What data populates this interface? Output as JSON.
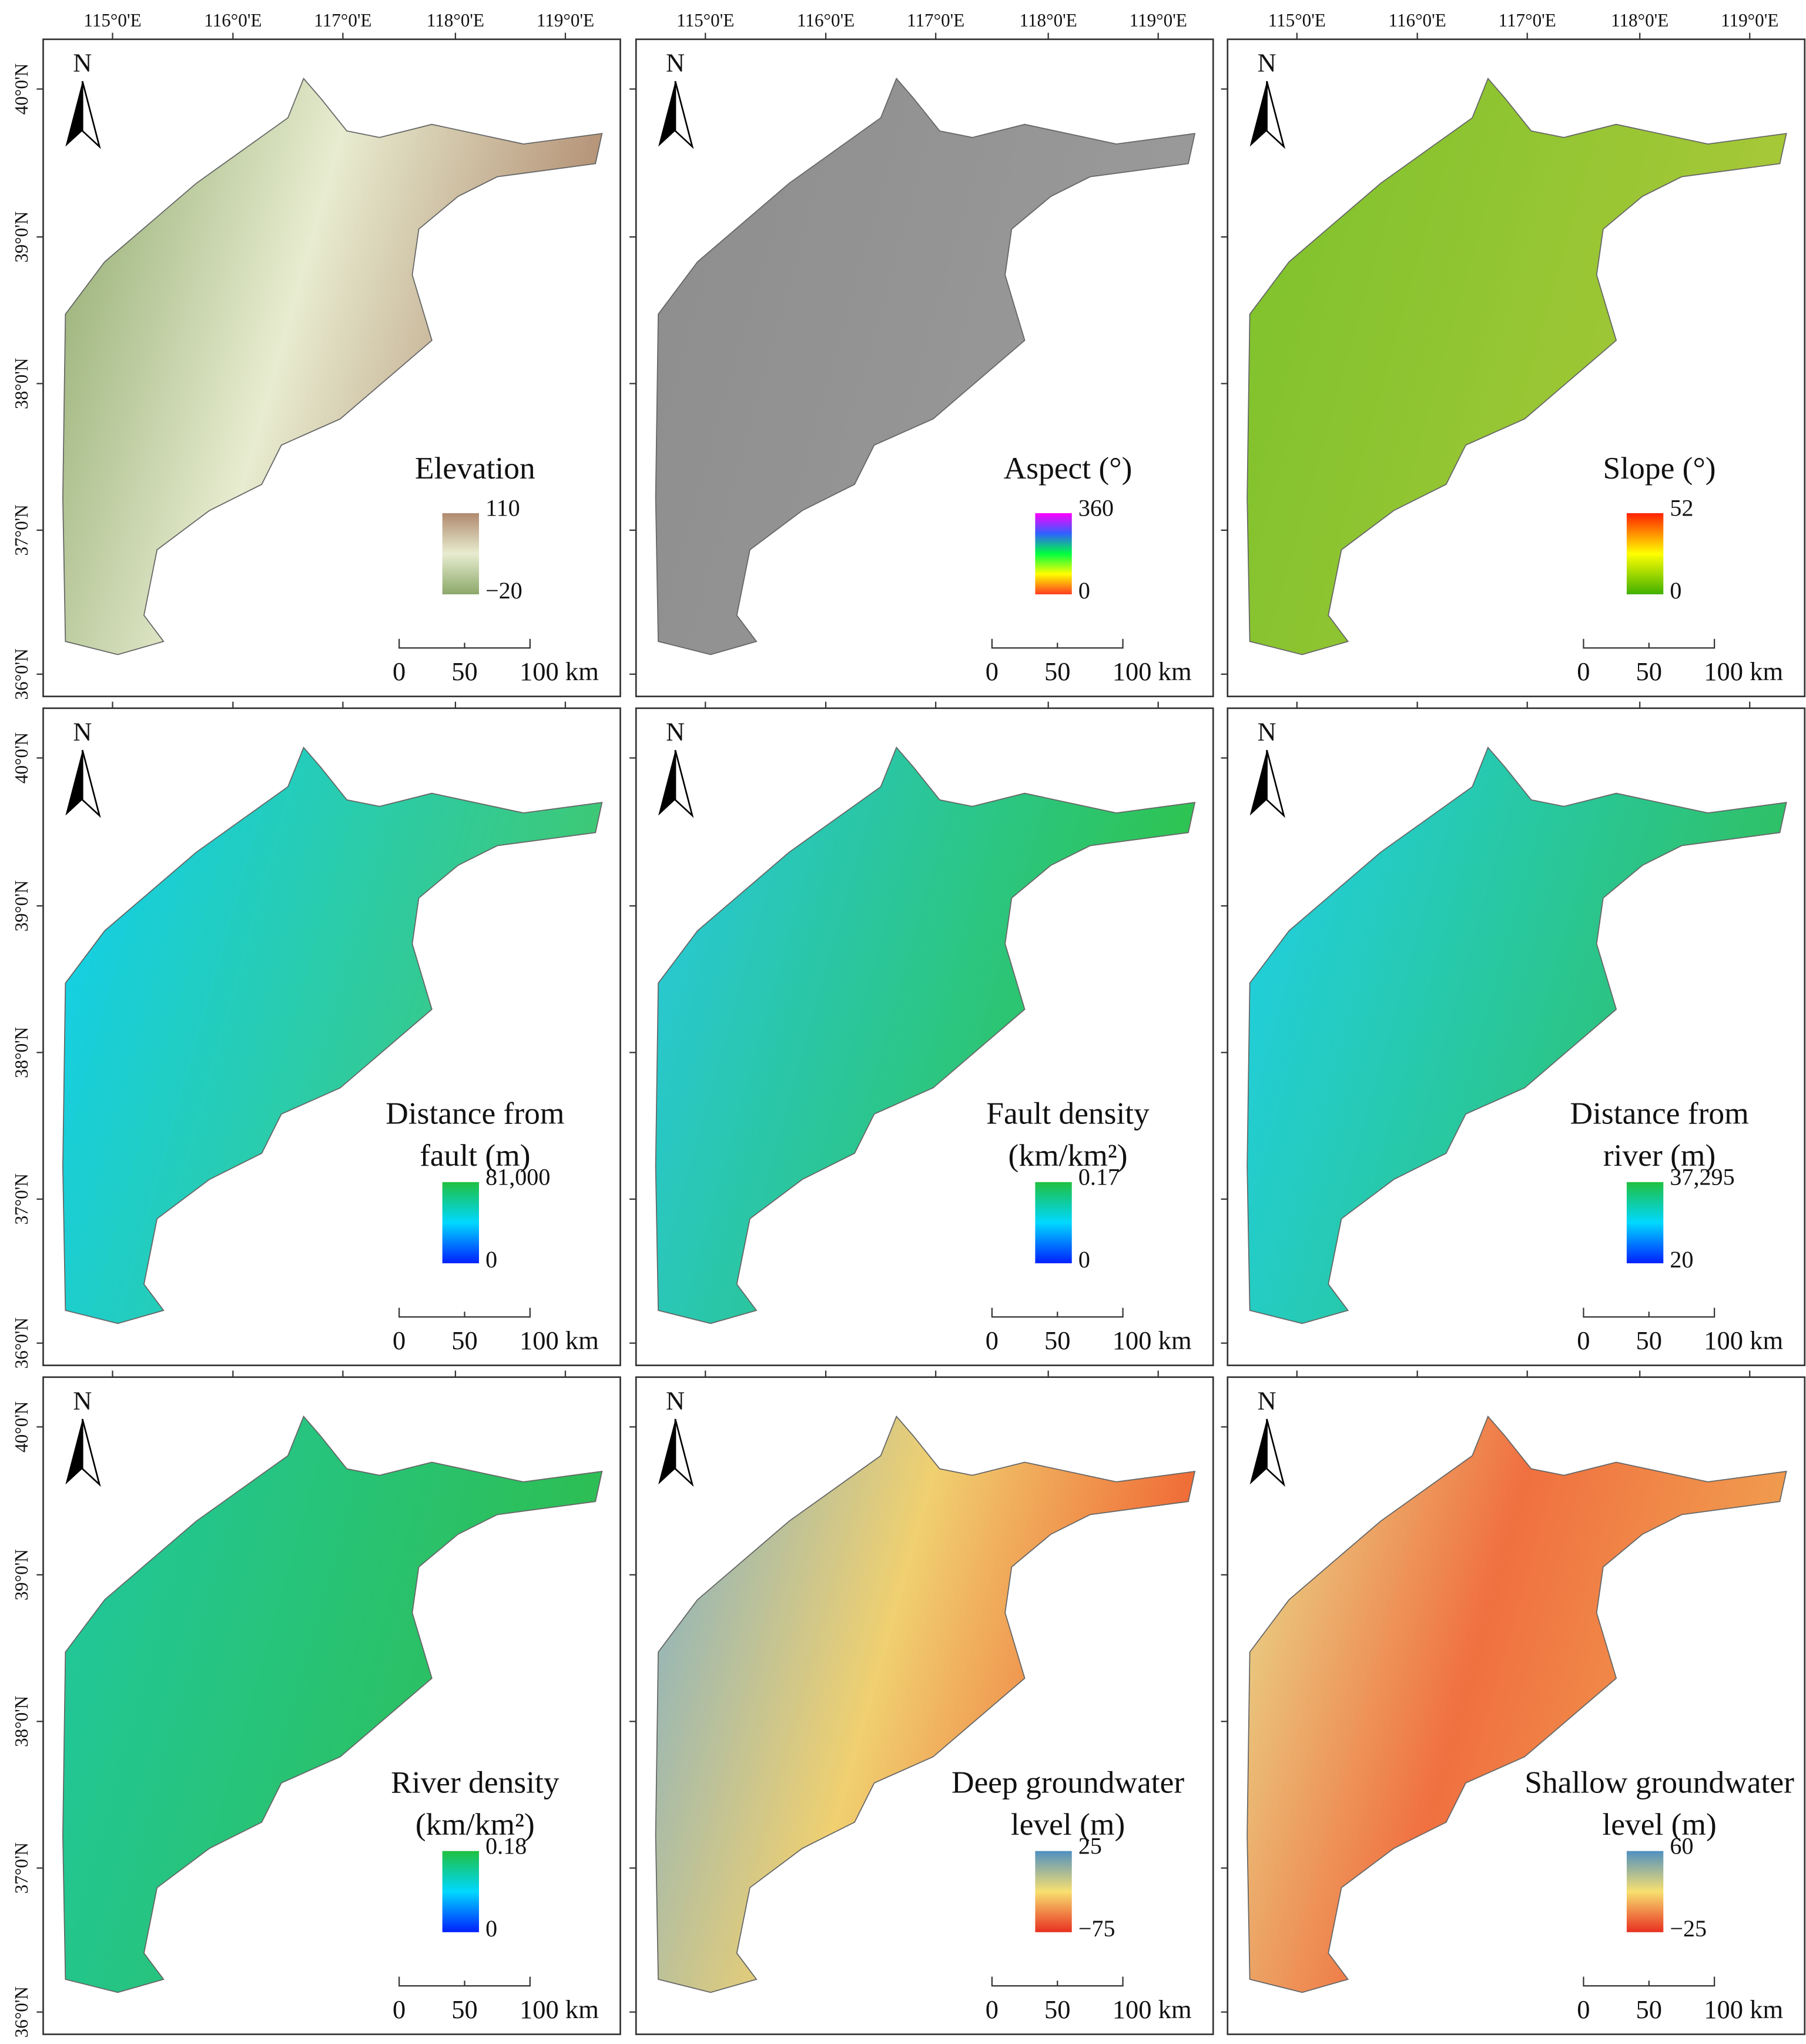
{
  "lon_labels": [
    "115°0'E",
    "116°0'E",
    "117°0'E",
    "118°0'E",
    "119°0'E"
  ],
  "lat_labels": [
    "40°0'N",
    "39°0'N",
    "38°0'N",
    "37°0'N",
    "36°0'N"
  ],
  "north": "N",
  "scale_bar": [
    "0",
    "50",
    "100 km"
  ],
  "panels": [
    {
      "title": [
        "Elevation"
      ],
      "max": "110",
      "min": "−20",
      "colors": [
        "#8ca86a",
        "#e8ecd0",
        "#b08a6e"
      ]
    },
    {
      "title": [
        "Aspect (°)"
      ],
      "max": "360",
      "min": "0",
      "colors": [
        "#ff3b1f",
        "#ffff00",
        "#00ff40",
        "#3060ff",
        "#ff00ff"
      ],
      "map_colors": [
        "#8d8d8d",
        "#9a9a9a"
      ]
    },
    {
      "title": [
        "Slope (°)"
      ],
      "max": "52",
      "min": "0",
      "colors": [
        "#40b000",
        "#ffff00",
        "#ff2000"
      ],
      "map_colors": [
        "#7cc22c",
        "#a8c838"
      ]
    },
    {
      "title": [
        "Distance from",
        "fault (m)"
      ],
      "max": "81,000",
      "min": "0",
      "colors": [
        "#0020ff",
        "#00d8ff",
        "#20c040"
      ],
      "map_colors": [
        "#10d0f0",
        "#40c870"
      ]
    },
    {
      "title": [
        "Fault density",
        "(km/km²)"
      ],
      "max": "0.17",
      "min": "0",
      "colors": [
        "#0020ff",
        "#00d8ff",
        "#20c040"
      ],
      "map_colors": [
        "#28c8e0",
        "#2ec44a"
      ]
    },
    {
      "title": [
        "Distance from",
        "river (m)"
      ],
      "max": "37,295",
      "min": "20",
      "colors": [
        "#0020ff",
        "#00d8ff",
        "#20c040"
      ],
      "map_colors": [
        "#20d0e8",
        "#30c060"
      ]
    },
    {
      "title": [
        "River density",
        "(km/km²)"
      ],
      "max": "0.18",
      "min": "0",
      "colors": [
        "#0020ff",
        "#00d8ff",
        "#20c040"
      ],
      "map_colors": [
        "#20c8a0",
        "#2ebe50"
      ]
    },
    {
      "title": [
        "Deep groundwater",
        "level (m)"
      ],
      "max": "25",
      "min": "−75",
      "colors": [
        "#e83020",
        "#f8e070",
        "#5090c0"
      ],
      "map_colors": [
        "#80b0c8",
        "#f0d070",
        "#f06030"
      ]
    },
    {
      "title": [
        "Shallow groundwater",
        "level (m)"
      ],
      "max": "60",
      "min": "−25",
      "colors": [
        "#e83020",
        "#f8e070",
        "#5090c0"
      ],
      "map_colors": [
        "#e8e090",
        "#f07040",
        "#f0a050"
      ]
    }
  ]
}
